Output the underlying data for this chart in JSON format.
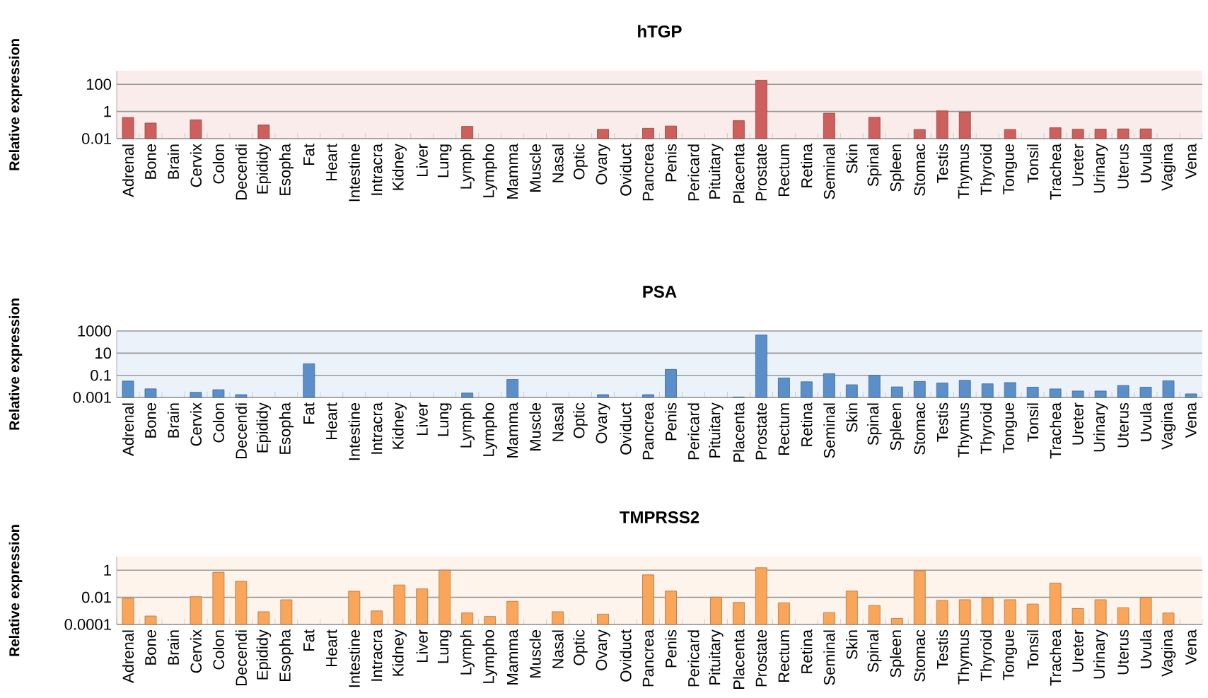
{
  "chart_data": [
    {
      "type": "bar",
      "title": "hTGP",
      "ylabel": "Relative expression",
      "color": "#cd5f5c",
      "log": "y",
      "grid": "y",
      "ylim": [
        0.01,
        1000
      ],
      "yticks": [
        0.01,
        1,
        100
      ],
      "categories": [
        "Adrenal",
        "Bone",
        "Brain",
        "Cervix",
        "Colon",
        "Decendi",
        "Epididy",
        "Esopha",
        "Fat",
        "Heart",
        "Intestine",
        "Intracra",
        "Kidney",
        "Liver",
        "Lung",
        "Lymph",
        "Lympho",
        "Mamma",
        "Muscle",
        "Nasal",
        "Optic",
        "Ovary",
        "Oviduct",
        "Pancrea",
        "Penis",
        "Pericard",
        "Pituitary",
        "Placenta",
        "Prostate",
        "Rectum",
        "Retina",
        "Seminal",
        "Skin",
        "Spinal",
        "Spleen",
        "Stomac",
        "Testis",
        "Thymus",
        "Thyroid",
        "Tongue",
        "Tonsil",
        "Trachea",
        "Ureter",
        "Urinary",
        "Uterus",
        "Uvula",
        "Vagina",
        "Vena"
      ],
      "values": [
        0.36,
        0.14,
        null,
        0.24,
        null,
        null,
        0.1,
        null,
        null,
        null,
        null,
        null,
        null,
        null,
        null,
        0.08,
        null,
        null,
        null,
        null,
        null,
        0.048,
        null,
        0.058,
        0.085,
        null,
        null,
        0.21,
        200,
        null,
        null,
        0.74,
        null,
        0.37,
        null,
        0.047,
        1.1,
        0.9,
        null,
        0.047,
        null,
        0.063,
        0.049,
        0.05,
        0.052,
        0.052,
        null,
        null
      ]
    },
    {
      "type": "bar",
      "title": "PSA",
      "ylabel": "Relative expression",
      "color": "#5b8fc9",
      "log": "y",
      "grid": "y",
      "ylim": [
        0.001,
        1000
      ],
      "yticks": [
        0.001,
        0.1,
        10,
        1000
      ],
      "categories": [
        "Adrenal",
        "Bone",
        "Brain",
        "Cervix",
        "Colon",
        "Decendi",
        "Epididy",
        "Esopha",
        "Fat",
        "Heart",
        "Intestine",
        "Intracra",
        "Kidney",
        "Liver",
        "Lung",
        "Lymph",
        "Lympho",
        "Mamma",
        "Muscle",
        "Nasal",
        "Optic",
        "Ovary",
        "Oviduct",
        "Pancrea",
        "Penis",
        "Pericard",
        "Pituitary",
        "Placenta",
        "Prostate",
        "Rectum",
        "Retina",
        "Seminal",
        "Skin",
        "Spinal",
        "Spleen",
        "Stomac",
        "Testis",
        "Thymus",
        "Thyroid",
        "Tongue",
        "Tonsil",
        "Trachea",
        "Ureter",
        "Urinary",
        "Uterus",
        "Uvula",
        "Vagina",
        "Vena"
      ],
      "values": [
        0.03,
        0.006,
        null,
        0.0029,
        0.005,
        0.0018,
        null,
        null,
        1.1,
        null,
        null,
        null,
        null,
        null,
        null,
        0.0025,
        null,
        0.042,
        null,
        null,
        null,
        0.0018,
        null,
        0.0018,
        0.34,
        null,
        null,
        0.0011,
        430,
        0.057,
        0.026,
        0.14,
        0.014,
        0.1,
        0.009,
        0.028,
        0.02,
        0.035,
        0.017,
        0.022,
        0.0085,
        0.0059,
        0.0038,
        0.0038,
        0.012,
        0.0085,
        0.032,
        0.0021
      ]
    },
    {
      "type": "bar",
      "title": "TMPRSS2",
      "ylabel": "Relative expression",
      "color": "#f9a65a",
      "log": "y",
      "grid": "y",
      "ylim": [
        0.0001,
        10
      ],
      "yticks": [
        0.0001,
        0.01,
        1
      ],
      "categories": [
        "Adrenal",
        "Bone",
        "Brain",
        "Cervix",
        "Colon",
        "Decendi",
        "Epididy",
        "Esopha",
        "Fat",
        "Heart",
        "Intestine",
        "Intracra",
        "Kidney",
        "Liver",
        "Lung",
        "Lymph",
        "Lympho",
        "Mamma",
        "Muscle",
        "Nasal",
        "Optic",
        "Ovary",
        "Oviduct",
        "Pancrea",
        "Penis",
        "Pericard",
        "Pituitary",
        "Placenta",
        "Prostate",
        "Rectum",
        "Retina",
        "Seminal",
        "Skin",
        "Spinal",
        "Spleen",
        "Stomac",
        "Testis",
        "Thymus",
        "Thyroid",
        "Tongue",
        "Tonsil",
        "Trachea",
        "Ureter",
        "Urinary",
        "Uterus",
        "Uvula",
        "Vagina",
        "Vena"
      ],
      "values": [
        0.0087,
        0.00042,
        null,
        0.011,
        0.71,
        0.15,
        0.00087,
        0.0066,
        null,
        null,
        0.028,
        0.001,
        0.081,
        0.042,
        1.0,
        0.00071,
        0.00039,
        0.0051,
        null,
        0.00087,
        null,
        0.00058,
        null,
        0.45,
        0.029,
        null,
        0.0103,
        0.0042,
        1.5,
        0.0039,
        null,
        0.00075,
        0.029,
        0.0025,
        0.00028,
        0.89,
        0.0059,
        0.0067,
        0.0092,
        0.0067,
        0.0032,
        0.11,
        0.0015,
        0.0067,
        0.0017,
        0.0092,
        0.0007,
        null
      ]
    }
  ]
}
